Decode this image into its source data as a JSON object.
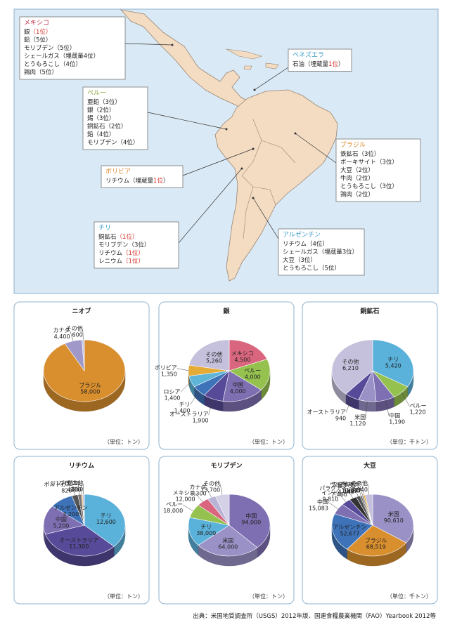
{
  "map": {
    "callouts": [
      {
        "id": "mexico",
        "title": "メキシコ",
        "title_color": "#c8334a",
        "lines": [
          {
            "text": "銀",
            "rank": "（1位）",
            "rank_red": true
          },
          {
            "text": "鉛",
            "rank": "（5位）",
            "rank_red": false
          },
          {
            "text": "モリブデン",
            "rank": "（5位）",
            "rank_red": false
          },
          {
            "text": "シェールガス",
            "rank": "（埋蔵量4位）",
            "rank_red": false
          },
          {
            "text": "とうもろこし",
            "rank": "（4位）",
            "rank_red": false
          },
          {
            "text": "鶏肉",
            "rank": "（5位）",
            "rank_red": false
          }
        ]
      },
      {
        "id": "venezuela",
        "title": "ベネズエラ",
        "title_color": "#3a9ac9",
        "lines": [
          {
            "text": "石油",
            "rank": "（埋蔵量",
            "rank_red": false,
            "red": "1位",
            "after": "）"
          }
        ]
      },
      {
        "id": "peru",
        "title": "ペルー",
        "title_color": "#8aa63a",
        "lines": [
          {
            "text": "亜鉛",
            "rank": "（3位）",
            "rank_red": false
          },
          {
            "text": "銀",
            "rank": "（2位）",
            "rank_red": false
          },
          {
            "text": "錫",
            "rank": "（3位）",
            "rank_red": false
          },
          {
            "text": "銅鉱石",
            "rank": "（2位）",
            "rank_red": false
          },
          {
            "text": "鉛",
            "rank": "（4位）",
            "rank_red": false
          },
          {
            "text": "モリブデン",
            "rank": "（4位）",
            "rank_red": false
          }
        ]
      },
      {
        "id": "brazil",
        "title": "ブラジル",
        "title_color": "#d9882b",
        "lines": [
          {
            "text": "鉄鉱石",
            "rank": "（3位）",
            "rank_red": false
          },
          {
            "text": "ボーキサイト",
            "rank": "（3位）",
            "rank_red": false
          },
          {
            "text": "大豆",
            "rank": "（2位）",
            "rank_red": false
          },
          {
            "text": "牛肉",
            "rank": "（2位）",
            "rank_red": false
          },
          {
            "text": "とうもろこし",
            "rank": "（3位）",
            "rank_red": false
          },
          {
            "text": "鶏肉",
            "rank": "（2位）",
            "rank_red": false
          }
        ]
      },
      {
        "id": "bolivia",
        "title": "ボリビア",
        "title_color": "#d9882b",
        "lines": [
          {
            "text": "リチウム",
            "rank": "（埋蔵量",
            "rank_red": false,
            "red": "1位",
            "after": "）"
          }
        ]
      },
      {
        "id": "chile",
        "title": "チリ",
        "title_color": "#3a9ac9",
        "lines": [
          {
            "text": "銅鉱石",
            "rank": "（1位）",
            "rank_red": true
          },
          {
            "text": "モリブデン",
            "rank": "（3位）",
            "rank_red": false
          },
          {
            "text": "リチウム",
            "rank": "（1位）",
            "rank_red": true
          },
          {
            "text": "レニウム",
            "rank": "（1位）",
            "rank_red": true
          }
        ]
      },
      {
        "id": "argentina",
        "title": "アルゼンチン",
        "title_color": "#3a9ac9",
        "lines": [
          {
            "text": "リチウム",
            "rank": "（4位）",
            "rank_red": false
          },
          {
            "text": "シェールガス",
            "rank": "（埋蔵量3位）",
            "rank_red": false
          },
          {
            "text": "大豆",
            "rank": "（3位）",
            "rank_red": false
          },
          {
            "text": "とうもろこし",
            "rank": "（5位）",
            "rank_red": false
          }
        ]
      }
    ]
  },
  "chart_data": [
    {
      "type": "pie",
      "title": "ニオブ",
      "unit_label": "（単位：トン）",
      "slices": [
        {
          "label": "ブラジル",
          "value": 58000,
          "value_text": "58,000",
          "color": "#d98f2e"
        },
        {
          "label": "カナダ",
          "value": 4400,
          "value_text": "4,400",
          "color": "#9f98c8"
        },
        {
          "label": "その他",
          "value": 600,
          "value_text": "600",
          "color": "#c8c4de"
        }
      ]
    },
    {
      "type": "pie",
      "title": "銀",
      "unit_label": "（単位：トン）",
      "slices": [
        {
          "label": "メキシコ",
          "value": 4500,
          "value_text": "4,500",
          "color": "#d9667e"
        },
        {
          "label": "ペルー",
          "value": 4000,
          "value_text": "4,000",
          "color": "#95c14f"
        },
        {
          "label": "中国",
          "value": 4000,
          "value_text": "4,000",
          "color": "#7e6fb2"
        },
        {
          "label": "オーストラリア",
          "value": 1900,
          "value_text": "1,900",
          "color": "#574a98"
        },
        {
          "label": "チリ",
          "value": 1400,
          "value_text": "1,400",
          "color": "#3e73ba"
        },
        {
          "label": "ロシア",
          "value": 1400,
          "value_text": "1,400",
          "color": "#5fb5d8"
        },
        {
          "label": "ボリビア",
          "value": 1350,
          "value_text": "1,350",
          "color": "#e4ab36"
        },
        {
          "label": "その他",
          "value": 5260,
          "value_text": "5,260",
          "color": "#c5c1dc"
        }
      ]
    },
    {
      "type": "pie",
      "title": "銅鉱石",
      "unit_label": "（単位：千トン）",
      "slices": [
        {
          "label": "チリ",
          "value": 5420,
          "value_text": "5,420",
          "color": "#5ab1da"
        },
        {
          "label": "ペルー",
          "value": 1220,
          "value_text": "1,220",
          "color": "#95c14f"
        },
        {
          "label": "中国",
          "value": 1190,
          "value_text": "1,190",
          "color": "#7e6fb2"
        },
        {
          "label": "米国",
          "value": 1120,
          "value_text": "1,120",
          "color": "#9a92c6"
        },
        {
          "label": "オーストラリア",
          "value": 940,
          "value_text": "940",
          "color": "#574a98"
        },
        {
          "label": "その他",
          "value": 6210,
          "value_text": "6,210",
          "color": "#c5c1dc"
        }
      ]
    },
    {
      "type": "pie",
      "title": "リチウム",
      "unit_label": "（単位：トン）",
      "slices": [
        {
          "label": "チリ",
          "value": 12600,
          "value_text": "12,600",
          "color": "#5ab1da"
        },
        {
          "label": "オーストラリア",
          "value": 11300,
          "value_text": "11,300",
          "color": "#574a98"
        },
        {
          "label": "中国",
          "value": 5200,
          "value_text": "5,200",
          "color": "#7e6fb2"
        },
        {
          "label": "アルゼンチン",
          "value": 3200,
          "value_text": "3,200",
          "color": "#3e73ba"
        },
        {
          "label": "ポルトガル",
          "value": 820,
          "value_text": "820",
          "color": "#555555"
        },
        {
          "label": "ジンバブエ",
          "value": 470,
          "value_text": "470",
          "color": "#777777"
        },
        {
          "label": "ブラジル",
          "value": 160,
          "value_text": "160",
          "color": "#d98f2e"
        },
        {
          "label": "その他",
          "value": 250,
          "value_text": "250",
          "color": "#c5c1dc"
        }
      ]
    },
    {
      "type": "pie",
      "title": "モリブデン",
      "unit_label": "（単位：トン）",
      "slices": [
        {
          "label": "中国",
          "value": 94000,
          "value_text": "94,000",
          "color": "#7e6fb2"
        },
        {
          "label": "米国",
          "value": 64000,
          "value_text": "64,000",
          "color": "#9a92c6"
        },
        {
          "label": "チリ",
          "value": 38000,
          "value_text": "38,000",
          "color": "#5ab1da"
        },
        {
          "label": "ペルー",
          "value": 18000,
          "value_text": "18,000",
          "color": "#95c14f"
        },
        {
          "label": "メキシコ",
          "value": 12000,
          "value_text": "12,000",
          "color": "#d9667e"
        },
        {
          "label": "カナダ",
          "value": 8300,
          "value_text": "8,300",
          "color": "#b9b3d6"
        },
        {
          "label": "その他",
          "value": 13700,
          "value_text": "13,700",
          "color": "#d4d0e6"
        }
      ]
    },
    {
      "type": "pie",
      "title": "大豆",
      "unit_label": "（単位：千トン）",
      "slices": [
        {
          "label": "米国",
          "value": 90610,
          "value_text": "90,610",
          "color": "#9a92c6"
        },
        {
          "label": "ブラジル",
          "value": 68519,
          "value_text": "68,519",
          "color": "#d98f2e"
        },
        {
          "label": "アルゼンチン",
          "value": 52677,
          "value_text": "52,677",
          "color": "#3e73ba"
        },
        {
          "label": "中国",
          "value": 15083,
          "value_text": "15,083",
          "color": "#7e6fb2"
        },
        {
          "label": "インド",
          "value": 9810,
          "value_text": "9,810",
          "color": "#574a98"
        },
        {
          "label": "パラグアイ",
          "value": 7460,
          "value_text": "7,460",
          "color": "#333333"
        },
        {
          "label": "カナダ",
          "value": 4345,
          "value_text": "4,345",
          "color": "#555555"
        },
        {
          "label": "ウルグアイ",
          "value": 1817,
          "value_text": "1,817",
          "color": "#666666"
        },
        {
          "label": "ウクライナ",
          "value": 1680,
          "value_text": "1,680",
          "color": "#888888"
        },
        {
          "label": "ボリビア",
          "value": 1637,
          "value_text": "1,637",
          "color": "#e4ab36"
        },
        {
          "label": "その他",
          "value": 7940,
          "value_text": "7,940",
          "color": "#c5c1dc"
        }
      ]
    }
  ],
  "source": "出典：米国地質調査所（USGS）2012年版、国連食糧農業機関（FAO）Yearbook 2012等"
}
